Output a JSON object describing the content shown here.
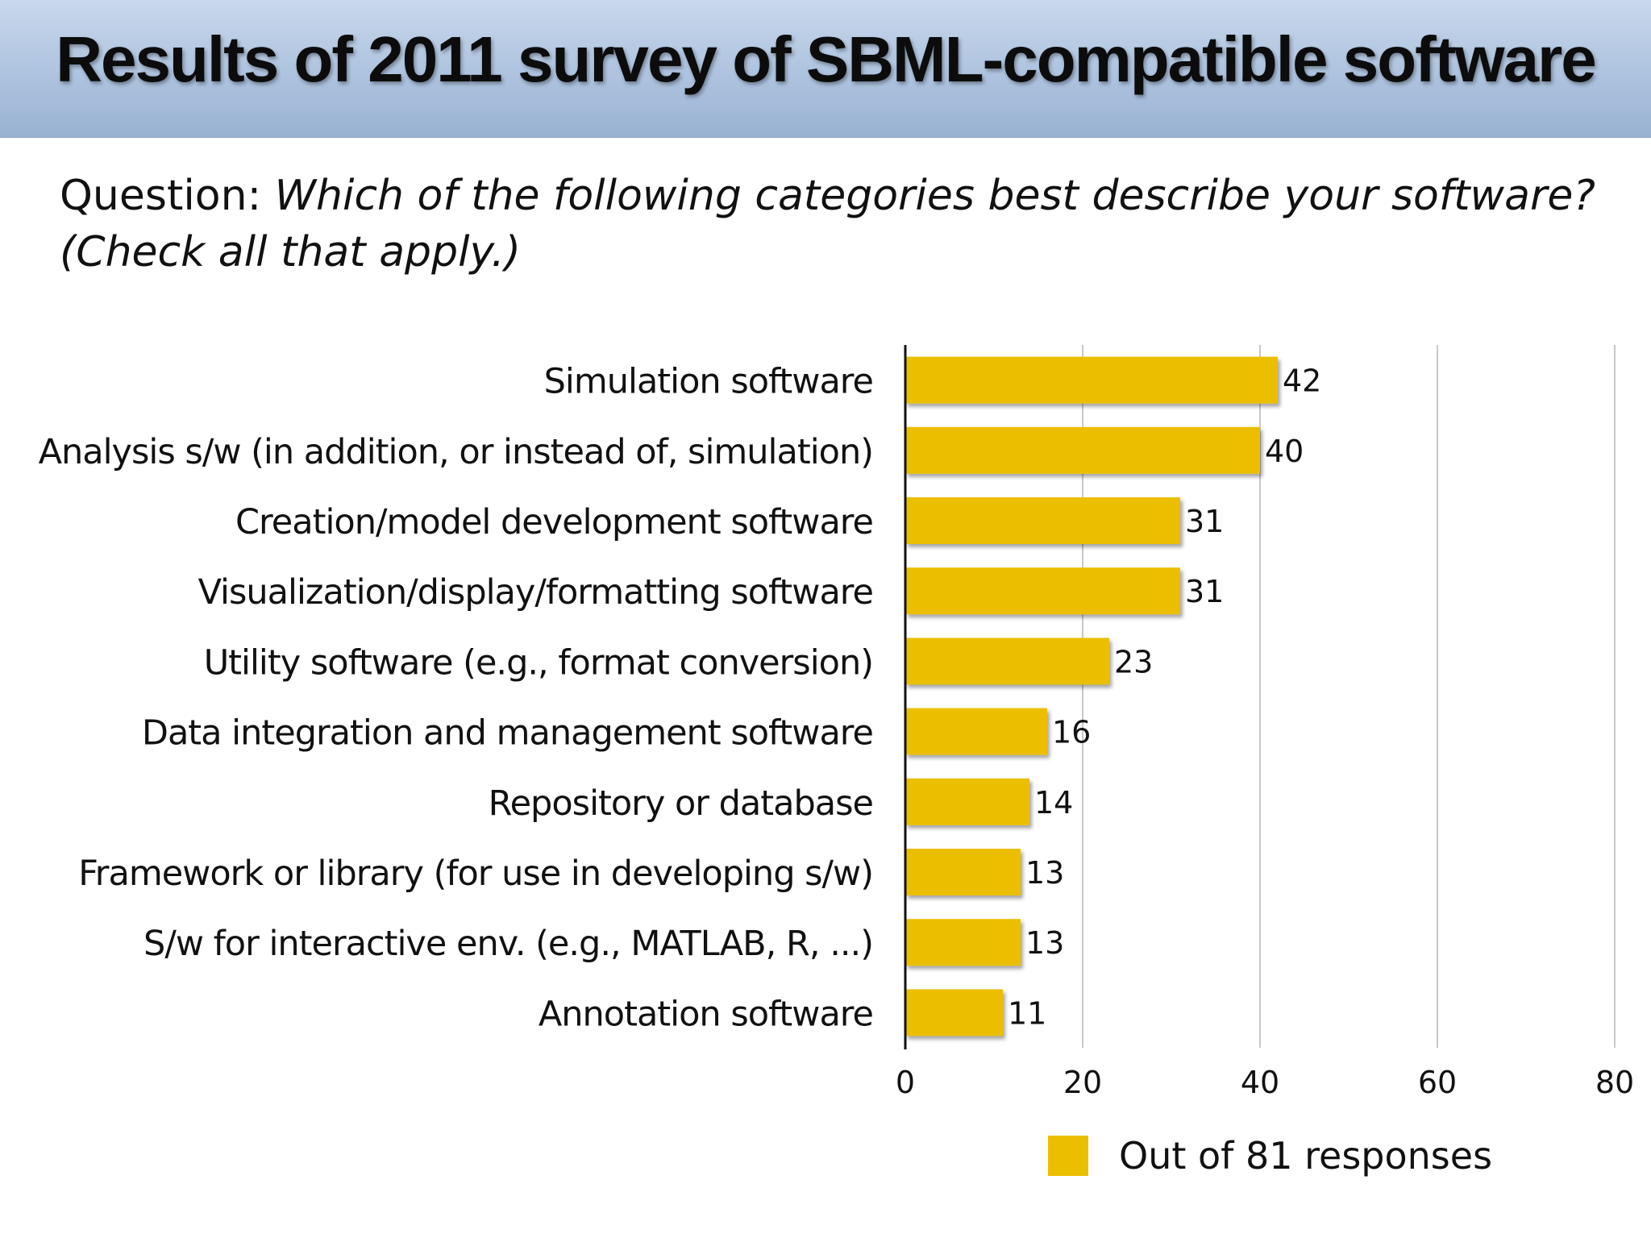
{
  "title": "Results of 2011 survey of SBML-compatible software",
  "question": {
    "prefix": "Question: ",
    "text": "Which of the following categories best describe your software? (Check all that apply.)"
  },
  "legend": {
    "label": "Out of 81 responses"
  },
  "colors": {
    "bar": "#EBBF00",
    "gridline": "#c8c8c8",
    "axis": "#111111"
  },
  "chart_data": {
    "type": "bar",
    "orientation": "horizontal",
    "categories": [
      "Simulation software",
      "Analysis s/w (in addition, or instead of, simulation)",
      "Creation/model development software",
      "Visualization/display/formatting software",
      "Utility software (e.g., format conversion)",
      "Data integration and management software",
      "Repository or database",
      "Framework or library (for use in developing s/w)",
      "S/w for interactive env. (e.g., MATLAB, R, ...)",
      "Annotation software"
    ],
    "values": [
      42,
      40,
      31,
      31,
      23,
      16,
      14,
      13,
      13,
      11
    ],
    "xlim": [
      0,
      80
    ],
    "xticks": [
      0,
      20,
      40,
      60,
      80
    ],
    "grid": true,
    "legend_position": "bottom-right"
  }
}
